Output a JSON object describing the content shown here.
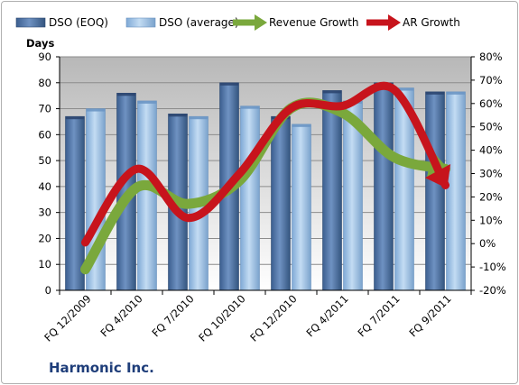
{
  "company": "Harmonic Inc.",
  "chart_data": {
    "type": "bar",
    "ylabel": "Days",
    "categories": [
      "FQ 12/2009",
      "FQ 4/2010",
      "FQ 7/2010",
      "FQ 10/2010",
      "FQ 12/2010",
      "FQ 4/2011",
      "FQ 7/2011",
      "FQ 9/2011"
    ],
    "ylim": [
      0,
      90
    ],
    "y_ticks": [
      "0",
      "10",
      "20",
      "30",
      "40",
      "50",
      "60",
      "70",
      "80",
      "90"
    ],
    "y2lim": [
      -20,
      80
    ],
    "y2_ticks": [
      "-20%",
      "-10%",
      "0%",
      "10%",
      "20%",
      "30%",
      "40%",
      "50%",
      "60%",
      "70%",
      "80%"
    ],
    "bar_series": [
      {
        "name": "DSO (EOQ)",
        "color": "#4a6fa3",
        "values": [
          67,
          76,
          68,
          80,
          67,
          77,
          80,
          76.5
        ]
      },
      {
        "name": "DSO (average)",
        "color": "#9dc3e6",
        "values": [
          70,
          73,
          67,
          71,
          64,
          73,
          78,
          76.5
        ]
      }
    ],
    "line_series": [
      {
        "name": "Revenue Growth",
        "color": "#7aa83c",
        "values": [
          -11,
          24,
          17,
          27,
          58,
          56,
          37,
          32
        ]
      },
      {
        "name": "AR Growth",
        "color": "#c7141c",
        "values": [
          0.5,
          32,
          11,
          30,
          58,
          59,
          66,
          25
        ]
      }
    ],
    "legend_position": "top",
    "grid": true
  }
}
